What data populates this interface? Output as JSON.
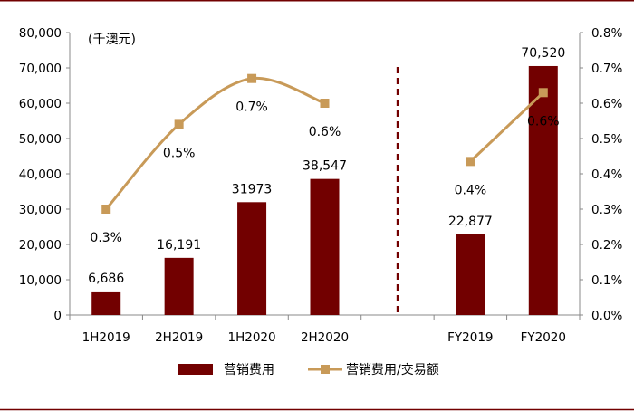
{
  "colors": {
    "bar": "#720000",
    "line": "#C89A58",
    "divider": "#720000",
    "frame": "#720000",
    "axis": "#888888"
  },
  "chart_data": {
    "type": "bar",
    "unit_label": "(千澳元)",
    "categories": [
      "1H2019",
      "2H2019",
      "1H2020",
      "2H2020",
      "",
      "FY2019",
      "FY2020"
    ],
    "series": [
      {
        "name": "营销费用",
        "type": "bar",
        "axis": "left",
        "values": [
          6686,
          16191,
          31973,
          38547,
          null,
          22877,
          70520
        ],
        "labels": [
          "6,686",
          "16,191",
          "31973",
          "38,547",
          "",
          "22,877",
          "70,520"
        ]
      },
      {
        "name": "营销费用/交易额",
        "type": "line",
        "axis": "right",
        "values": [
          0.003,
          0.0054,
          0.0067,
          0.006,
          null,
          0.00435,
          0.0063
        ],
        "labels": [
          "0.3%",
          "0.5%",
          "0.7%",
          "0.6%",
          "",
          "0.4%",
          "0.6%"
        ]
      }
    ],
    "y_left": {
      "lim": [
        0,
        80000
      ],
      "ticks": [
        "0",
        "10,000",
        "20,000",
        "30,000",
        "40,000",
        "50,000",
        "60,000",
        "70,000",
        "80,000"
      ]
    },
    "y_right": {
      "lim": [
        0,
        0.008
      ],
      "ticks": [
        "0.0%",
        "0.1%",
        "0.2%",
        "0.3%",
        "0.4%",
        "0.5%",
        "0.6%",
        "0.7%",
        "0.8%"
      ]
    },
    "divider_after_category_index": 4,
    "legend_position": "bottom",
    "grid": false
  }
}
